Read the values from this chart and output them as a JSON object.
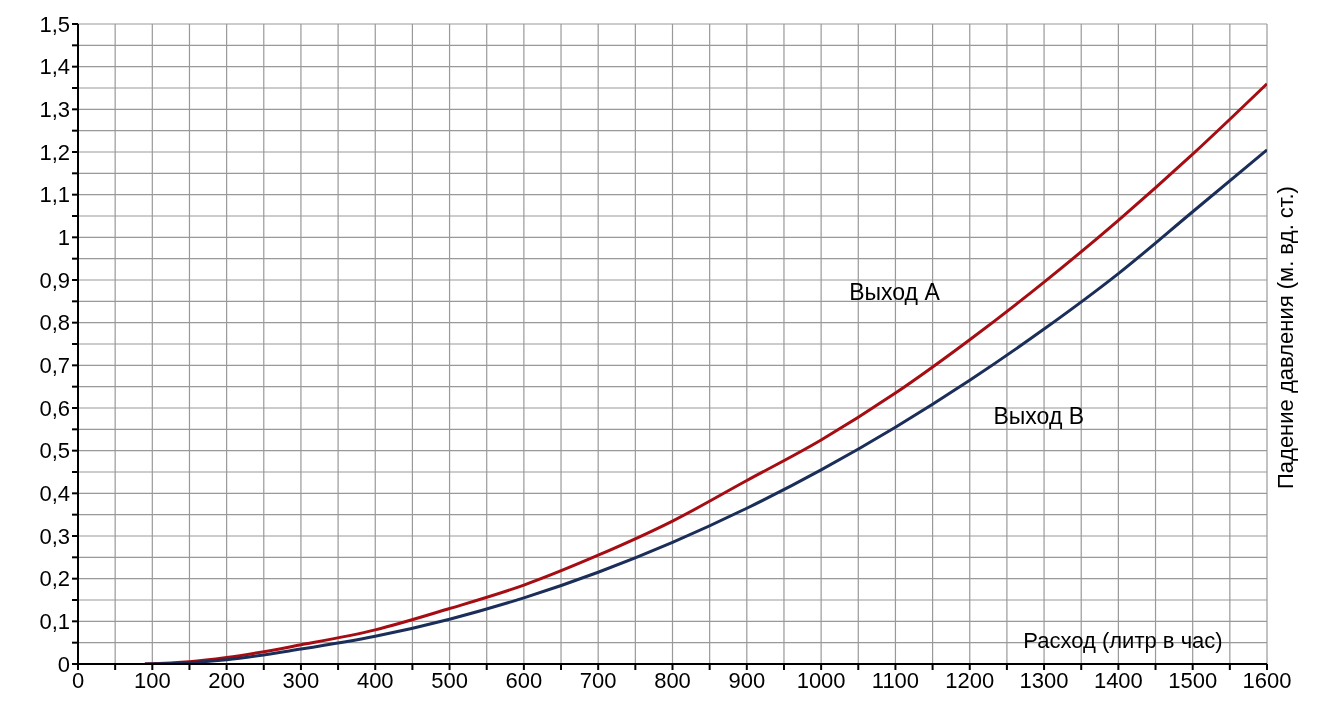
{
  "chart_data": {
    "type": "line",
    "xlabel": "Расход (литр в час)",
    "ylabel": "Падение давления (м. вд. ст.)",
    "x": [
      90,
      150,
      200,
      300,
      400,
      500,
      600,
      700,
      800,
      900,
      1000,
      1100,
      1200,
      1300,
      1400,
      1500,
      1600
    ],
    "series": [
      {
        "name": "Выход A",
        "color": "#a50d12",
        "values": [
          0,
          0.005,
          0.015,
          0.045,
          0.08,
          0.13,
          0.185,
          0.255,
          0.335,
          0.43,
          0.525,
          0.635,
          0.76,
          0.895,
          1.04,
          1.195,
          1.36
        ]
      },
      {
        "name": "Выход B",
        "color": "#1b2e5a",
        "values": [
          0,
          0.003,
          0.01,
          0.035,
          0.065,
          0.105,
          0.155,
          0.215,
          0.285,
          0.365,
          0.455,
          0.555,
          0.665,
          0.785,
          0.915,
          1.06,
          1.205
        ]
      }
    ],
    "xlim": [
      0,
      1600
    ],
    "xticks": [
      0,
      {
        "value": 50,
        "label": null
      },
      100,
      {
        "value": 150,
        "label": null
      },
      200,
      {
        "value": 250,
        "label": null
      },
      300,
      {
        "value": 350,
        "label": null
      },
      400,
      {
        "value": 450,
        "label": null
      },
      500,
      {
        "value": 550,
        "label": null
      },
      600,
      {
        "value": 650,
        "label": null
      },
      700,
      {
        "value": 750,
        "label": null
      },
      800,
      {
        "value": 850,
        "label": null
      },
      900,
      {
        "value": 950,
        "label": null
      },
      1000,
      {
        "value": 1050,
        "label": null
      },
      1100,
      {
        "value": 1150,
        "label": null
      },
      1200,
      {
        "value": 1250,
        "label": null
      },
      1300,
      {
        "value": 1350,
        "label": null
      },
      1400,
      {
        "value": 1450,
        "label": null
      },
      1500,
      {
        "value": 1550,
        "label": null
      },
      1600
    ],
    "ylim": [
      0,
      1.5
    ],
    "yticks": [
      0,
      {
        "value": 0.05,
        "label": null
      },
      {
        "value": 0.1,
        "label": "0,1"
      },
      {
        "value": 0.15,
        "label": null
      },
      {
        "value": 0.2,
        "label": "0,2"
      },
      {
        "value": 0.25,
        "label": null
      },
      {
        "value": 0.3,
        "label": "0,3"
      },
      {
        "value": 0.35,
        "label": null
      },
      {
        "value": 0.4,
        "label": "0,4"
      },
      {
        "value": 0.45,
        "label": null
      },
      {
        "value": 0.5,
        "label": "0,5"
      },
      {
        "value": 0.55,
        "label": null
      },
      {
        "value": 0.6,
        "label": "0,6"
      },
      {
        "value": 0.65,
        "label": null
      },
      {
        "value": 0.7,
        "label": "0,7"
      },
      {
        "value": 0.75,
        "label": null
      },
      {
        "value": 0.8,
        "label": "0,8"
      },
      {
        "value": 0.85,
        "label": null
      },
      {
        "value": 0.9,
        "label": "0,9"
      },
      {
        "value": 0.95,
        "label": null
      },
      1,
      {
        "value": 1.05,
        "label": null
      },
      {
        "value": 1.1,
        "label": "1,1"
      },
      {
        "value": 1.15,
        "label": null
      },
      {
        "value": 1.2,
        "label": "1,2"
      },
      {
        "value": 1.25,
        "label": null
      },
      {
        "value": 1.3,
        "label": "1,3"
      },
      {
        "value": 1.35,
        "label": null
      },
      {
        "value": 1.4,
        "label": "1,4"
      },
      {
        "value": 1.45,
        "label": null
      },
      {
        "value": 1.5,
        "label": "1,5"
      }
    ],
    "grid": true,
    "legend": false
  }
}
